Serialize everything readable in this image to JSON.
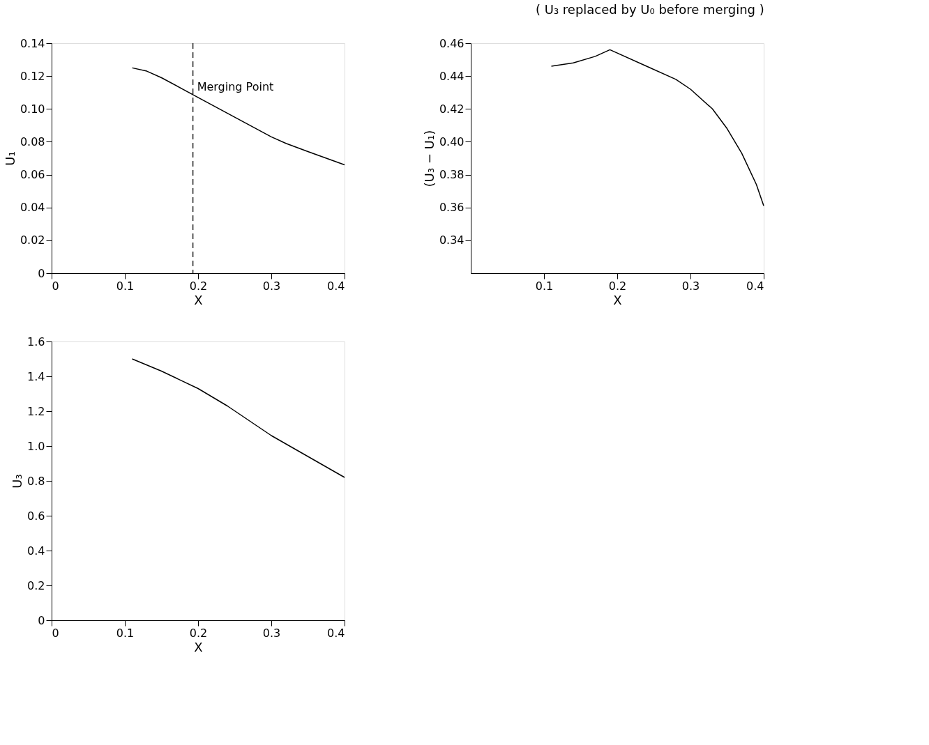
{
  "chart_data": [
    {
      "type": "line",
      "xlabel": "X",
      "ylabel": "U₁",
      "grid": false,
      "marker": "none",
      "line_style": "solid",
      "x": [
        0.11,
        0.13,
        0.15,
        0.2,
        0.25,
        0.3,
        0.32,
        0.35,
        0.4
      ],
      "series": [
        {
          "color": "#000000",
          "values": [
            0.125,
            0.123,
            0.119,
            0.107,
            0.095,
            0.083,
            0.079,
            0.074,
            0.066
          ]
        }
      ],
      "xlim": [
        0,
        0.4
      ],
      "xticks": [
        0,
        0.1,
        0.2,
        0.3,
        0.4
      ],
      "ylim": [
        0,
        0.14
      ],
      "yticks": [
        0,
        0.02,
        0.04,
        0.06,
        0.08,
        {
          "value": 0.1,
          "label": "0.10"
        },
        0.12,
        0.14
      ],
      "ref_lines": [
        {
          "axis": "x",
          "value": 0.193,
          "color": "#000000",
          "line_style": "dashed"
        }
      ],
      "annotations": [
        {
          "text": "Merging Point",
          "x": 0.193,
          "y": 0.108
        }
      ]
    },
    {
      "type": "line",
      "xlabel": "X",
      "ylabel": "U₃",
      "grid": false,
      "marker": "none",
      "line_style": "solid",
      "x": [
        0.11,
        0.15,
        0.2,
        0.24,
        0.3,
        0.35,
        0.4
      ],
      "series": [
        {
          "color": "#000000",
          "values": [
            1.5,
            1.43,
            1.33,
            1.23,
            1.06,
            0.94,
            0.82
          ]
        }
      ],
      "xlim": [
        0,
        0.4
      ],
      "xticks": [
        0,
        0.1,
        0.2,
        0.3,
        0.4
      ],
      "ylim": [
        0,
        1.6
      ],
      "yticks": [
        0,
        0.2,
        0.4,
        0.6,
        0.8,
        {
          "value": 1,
          "label": "1.0"
        },
        1.2,
        1.4,
        1.6
      ]
    },
    {
      "type": "line",
      "title": "( U₃ replaced by U₀ before merging )",
      "xlabel": "X",
      "ylabel": "(U₃ − U₁)",
      "grid": false,
      "marker": "none",
      "line_style": "solid",
      "x": [
        0.11,
        0.14,
        0.17,
        0.19,
        0.24,
        0.28,
        0.3,
        0.33,
        0.35,
        0.37,
        0.39,
        0.4
      ],
      "series": [
        {
          "color": "#000000",
          "values": [
            0.446,
            0.448,
            0.452,
            0.456,
            0.446,
            0.438,
            0.432,
            0.42,
            0.408,
            0.393,
            0.374,
            0.361
          ]
        }
      ],
      "xlim": [
        0,
        0.4
      ],
      "xticks": [
        0.1,
        0.2,
        0.3,
        0.4
      ],
      "ylim": [
        0.32,
        0.46
      ],
      "yticks": [
        0.34,
        0.36,
        0.38,
        {
          "value": 0.4,
          "label": "0.40"
        },
        0.42,
        0.44,
        0.46
      ]
    }
  ]
}
